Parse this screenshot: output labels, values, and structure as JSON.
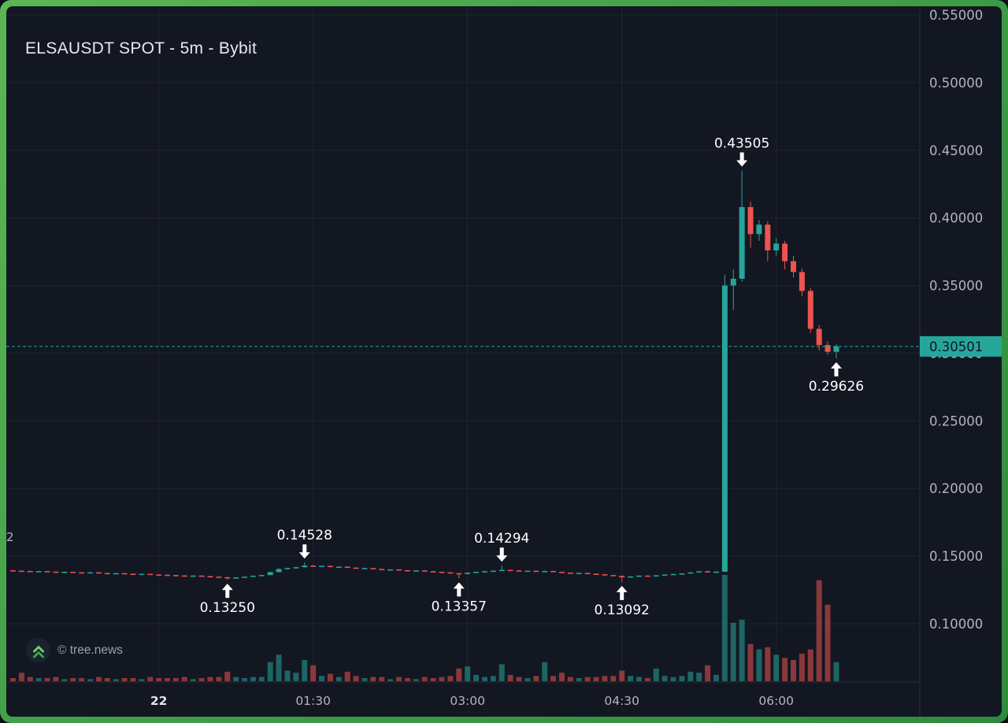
{
  "header": {
    "title": "ELSAUSDT SPOT - 5m - Bybit"
  },
  "watermark": {
    "text": "© tree.news",
    "logo": "double-chevron-up"
  },
  "colors": {
    "background": "#131722",
    "frame_green_light": "#5cb654",
    "frame_green_dark": "#2e8b3d",
    "up": "#26a69a",
    "down": "#ef5350",
    "vol_up": "rgba(38,166,154,0.55)",
    "vol_down": "rgba(239,83,80,0.55)",
    "grid": "rgba(255,255,255,0.06)",
    "axis_line": "#2a2e39",
    "axis_text": "#b2b5be",
    "axis_text_emph": "#dfe3ea",
    "annotation_text": "#ffffff",
    "price_line": "#26a69a",
    "badge_bg": "#26a69a",
    "badge_text": "#0e1722",
    "logo_green_light": "#6fd069",
    "logo_green_dark": "#3fa24a"
  },
  "chart_data": {
    "type": "candlestick",
    "title": "ELSAUSDT SPOT - 5m - Bybit",
    "symbol": "ELSAUSDT",
    "market_type": "SPOT",
    "timeframe": "5m",
    "exchange": "Bybit",
    "grid": true,
    "price_axis": {
      "min": 0.1,
      "max": 0.55,
      "step": 0.05,
      "ticks": [
        0.55,
        0.5,
        0.45,
        0.4,
        0.35,
        0.3,
        0.25,
        0.2,
        0.15,
        0.1
      ],
      "tick_labels": [
        "0.55000",
        "0.50000",
        "0.45000",
        "0.40000",
        "0.35000",
        "0.30000",
        "0.25000",
        "0.20000",
        "0.15000",
        "0.10000"
      ]
    },
    "time_axis": {
      "ticks": [
        {
          "label": "22",
          "index": 17,
          "is_date": true
        },
        {
          "label": "01:30",
          "index": 35,
          "is_date": false
        },
        {
          "label": "03:00",
          "index": 53,
          "is_date": false
        },
        {
          "label": "04:30",
          "index": 71,
          "is_date": false
        },
        {
          "label": "06:00",
          "index": 89,
          "is_date": false
        }
      ]
    },
    "current_price": {
      "value": 0.30501,
      "label": "0.30501"
    },
    "left_clipped_label": "2",
    "annotations": [
      {
        "label": "0.43505",
        "price": 0.43505,
        "candle_index": 85,
        "placement": "above"
      },
      {
        "label": "0.29626",
        "price": 0.29626,
        "candle_index": 96,
        "placement": "below"
      },
      {
        "label": "0.14528",
        "price": 0.14528,
        "candle_index": 34,
        "placement": "above"
      },
      {
        "label": "0.14294",
        "price": 0.14294,
        "candle_index": 57,
        "placement": "above"
      },
      {
        "label": "0.13250",
        "price": 0.1325,
        "candle_index": 25,
        "placement": "below"
      },
      {
        "label": "0.13357",
        "price": 0.13357,
        "candle_index": 52,
        "placement": "below"
      },
      {
        "label": "0.13092",
        "price": 0.13092,
        "candle_index": 71,
        "placement": "below"
      }
    ],
    "candles_format": [
      "open",
      "high",
      "low",
      "close",
      "volume_pct"
    ],
    "candles": [
      [
        0.1395,
        0.1397,
        0.139,
        0.1392,
        3
      ],
      [
        0.1392,
        0.1394,
        0.1387,
        0.139,
        8
      ],
      [
        0.139,
        0.1392,
        0.1384,
        0.1387,
        4
      ],
      [
        0.1387,
        0.1391,
        0.1385,
        0.1389,
        3
      ],
      [
        0.1389,
        0.139,
        0.1382,
        0.1385,
        3
      ],
      [
        0.1385,
        0.1387,
        0.1379,
        0.1382,
        4
      ],
      [
        0.1382,
        0.1386,
        0.138,
        0.1384,
        2
      ],
      [
        0.1384,
        0.1385,
        0.1377,
        0.138,
        3
      ],
      [
        0.138,
        0.1382,
        0.1375,
        0.1378,
        3
      ],
      [
        0.1378,
        0.1383,
        0.1376,
        0.138,
        2
      ],
      [
        0.138,
        0.1381,
        0.1372,
        0.1375,
        4
      ],
      [
        0.1375,
        0.1377,
        0.1369,
        0.1372,
        3
      ],
      [
        0.1372,
        0.1376,
        0.137,
        0.1374,
        2
      ],
      [
        0.1374,
        0.1375,
        0.1367,
        0.137,
        3
      ],
      [
        0.137,
        0.1372,
        0.1364,
        0.1367,
        3
      ],
      [
        0.1367,
        0.1371,
        0.1365,
        0.1369,
        2
      ],
      [
        0.1369,
        0.137,
        0.1361,
        0.1364,
        4
      ],
      [
        0.1364,
        0.1366,
        0.1359,
        0.1362,
        3
      ],
      [
        0.1362,
        0.1364,
        0.1357,
        0.136,
        3
      ],
      [
        0.136,
        0.1362,
        0.1354,
        0.1357,
        3
      ],
      [
        0.1357,
        0.1359,
        0.1351,
        0.1354,
        4
      ],
      [
        0.1354,
        0.1358,
        0.1352,
        0.1356,
        2
      ],
      [
        0.1356,
        0.1357,
        0.1349,
        0.1352,
        3
      ],
      [
        0.1352,
        0.1354,
        0.1345,
        0.1348,
        4
      ],
      [
        0.1348,
        0.135,
        0.1341,
        0.1344,
        4
      ],
      [
        0.1344,
        0.1346,
        0.1325,
        0.1338,
        9
      ],
      [
        0.1338,
        0.1344,
        0.1336,
        0.1342,
        4
      ],
      [
        0.1342,
        0.135,
        0.134,
        0.1348,
        3
      ],
      [
        0.1348,
        0.1357,
        0.1346,
        0.1355,
        4
      ],
      [
        0.1355,
        0.1362,
        0.1353,
        0.136,
        4
      ],
      [
        0.136,
        0.1385,
        0.1358,
        0.1382,
        18
      ],
      [
        0.1382,
        0.1408,
        0.138,
        0.1405,
        25
      ],
      [
        0.1405,
        0.1415,
        0.14,
        0.1412,
        10
      ],
      [
        0.1412,
        0.1422,
        0.1408,
        0.1418,
        8
      ],
      [
        0.1418,
        0.14528,
        0.1415,
        0.143,
        20
      ],
      [
        0.143,
        0.1434,
        0.1421,
        0.1425,
        15
      ],
      [
        0.1425,
        0.1431,
        0.1423,
        0.1428,
        5
      ],
      [
        0.1428,
        0.143,
        0.1416,
        0.142,
        7
      ],
      [
        0.142,
        0.1425,
        0.1418,
        0.1422,
        4
      ],
      [
        0.1422,
        0.1424,
        0.1412,
        0.1415,
        9
      ],
      [
        0.1415,
        0.1417,
        0.1407,
        0.141,
        5
      ],
      [
        0.141,
        0.1414,
        0.1408,
        0.1412,
        3
      ],
      [
        0.1412,
        0.1413,
        0.1402,
        0.1405,
        4
      ],
      [
        0.1405,
        0.1407,
        0.1397,
        0.14,
        4
      ],
      [
        0.14,
        0.1404,
        0.1398,
        0.1402,
        2
      ],
      [
        0.1402,
        0.1403,
        0.1393,
        0.1396,
        4
      ],
      [
        0.1396,
        0.1398,
        0.1389,
        0.1392,
        3
      ],
      [
        0.1392,
        0.1396,
        0.139,
        0.1394,
        2
      ],
      [
        0.1394,
        0.1395,
        0.1385,
        0.1388,
        4
      ],
      [
        0.1388,
        0.139,
        0.1381,
        0.1384,
        3
      ],
      [
        0.1384,
        0.1386,
        0.1377,
        0.138,
        4
      ],
      [
        0.138,
        0.1382,
        0.1371,
        0.1374,
        5
      ],
      [
        0.1374,
        0.1376,
        0.13357,
        0.1368,
        12
      ],
      [
        0.1368,
        0.138,
        0.1366,
        0.1378,
        14
      ],
      [
        0.1378,
        0.1386,
        0.1376,
        0.1384,
        6
      ],
      [
        0.1384,
        0.139,
        0.1382,
        0.1388,
        4
      ],
      [
        0.1388,
        0.1394,
        0.1386,
        0.1392,
        5
      ],
      [
        0.1392,
        0.14294,
        0.139,
        0.1398,
        16
      ],
      [
        0.1398,
        0.14,
        0.1391,
        0.1394,
        6
      ],
      [
        0.1394,
        0.1396,
        0.1387,
        0.139,
        4
      ],
      [
        0.139,
        0.1394,
        0.1388,
        0.1392,
        3
      ],
      [
        0.1392,
        0.1393,
        0.1383,
        0.1386,
        5
      ],
      [
        0.1386,
        0.1392,
        0.1384,
        0.139,
        18
      ],
      [
        0.139,
        0.1391,
        0.1381,
        0.1384,
        5
      ],
      [
        0.1384,
        0.1386,
        0.1375,
        0.1378,
        8
      ],
      [
        0.1378,
        0.138,
        0.1371,
        0.1374,
        4
      ],
      [
        0.1374,
        0.1378,
        0.1372,
        0.1376,
        3
      ],
      [
        0.1376,
        0.1377,
        0.1367,
        0.137,
        4
      ],
      [
        0.137,
        0.1372,
        0.1363,
        0.1366,
        4
      ],
      [
        0.1366,
        0.1368,
        0.1357,
        0.136,
        5
      ],
      [
        0.136,
        0.1362,
        0.1351,
        0.1354,
        5
      ],
      [
        0.1354,
        0.1356,
        0.13092,
        0.1344,
        10
      ],
      [
        0.1344,
        0.1352,
        0.1342,
        0.135,
        5
      ],
      [
        0.135,
        0.1358,
        0.1348,
        0.1356,
        4
      ],
      [
        0.1356,
        0.1357,
        0.1349,
        0.1352,
        3
      ],
      [
        0.1352,
        0.136,
        0.135,
        0.1358,
        12
      ],
      [
        0.1358,
        0.1366,
        0.1356,
        0.1364,
        5
      ],
      [
        0.1364,
        0.137,
        0.1362,
        0.1368,
        4
      ],
      [
        0.1368,
        0.1374,
        0.1366,
        0.1372,
        5
      ],
      [
        0.1372,
        0.1382,
        0.137,
        0.138,
        9
      ],
      [
        0.138,
        0.139,
        0.1376,
        0.1388,
        8
      ],
      [
        0.1388,
        0.1392,
        0.1378,
        0.1382,
        15
      ],
      [
        0.1382,
        0.1388,
        0.138,
        0.1385,
        6
      ],
      [
        0.1385,
        0.358,
        0.1382,
        0.35,
        100
      ],
      [
        0.35,
        0.362,
        0.332,
        0.355,
        55
      ],
      [
        0.355,
        0.43505,
        0.353,
        0.408,
        58
      ],
      [
        0.408,
        0.412,
        0.378,
        0.388,
        35
      ],
      [
        0.388,
        0.3985,
        0.383,
        0.395,
        30
      ],
      [
        0.395,
        0.3975,
        0.368,
        0.376,
        32
      ],
      [
        0.376,
        0.385,
        0.372,
        0.381,
        25
      ],
      [
        0.381,
        0.383,
        0.362,
        0.368,
        22
      ],
      [
        0.368,
        0.372,
        0.356,
        0.36,
        20
      ],
      [
        0.36,
        0.3625,
        0.342,
        0.346,
        26
      ],
      [
        0.346,
        0.348,
        0.315,
        0.318,
        30
      ],
      [
        0.318,
        0.321,
        0.302,
        0.306,
        95
      ],
      [
        0.306,
        0.309,
        0.299,
        0.301,
        72
      ],
      [
        0.301,
        0.307,
        0.29626,
        0.30501,
        18
      ]
    ]
  }
}
